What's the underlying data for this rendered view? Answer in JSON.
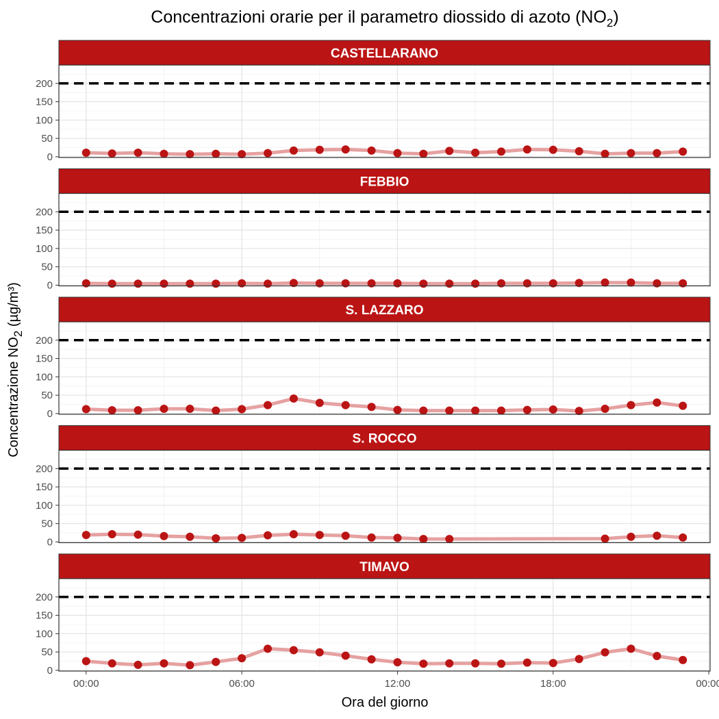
{
  "chart_data": {
    "type": "line",
    "title": "Concentrazioni orarie per il parametro diossido di azoto",
    "title_symbol": "NO",
    "title_subscript": "2",
    "xlabel": "Ora del giorno",
    "ylabel_main": "Concentrazione NO",
    "ylabel_subscript": "2",
    "ylabel_unit": " (µg/m³)",
    "x_ticks": [
      "00:00",
      "06:00",
      "12:00",
      "18:00",
      "00:00"
    ],
    "y_ticks": [
      "0",
      "50",
      "100",
      "150",
      "200"
    ],
    "threshold": 200,
    "ylim": [
      -2,
      250
    ],
    "xlim_hours": [
      -1.05,
      24.05
    ],
    "colors": {
      "point": "#bb1414",
      "line": "#e6a1a1",
      "strip": "#bb1414",
      "threshold": "#000000"
    },
    "panels": [
      {
        "name": "CASTELLARANO",
        "values": [
          11,
          9,
          11,
          8,
          7,
          8,
          7,
          10,
          17,
          19,
          20,
          17,
          10,
          8,
          16,
          11,
          14,
          20,
          19,
          15,
          8,
          10,
          10,
          14
        ]
      },
      {
        "name": "FEBBIO",
        "values": [
          5,
          4,
          4,
          4,
          4,
          4,
          5,
          4,
          6,
          5,
          5,
          5,
          5,
          4,
          4,
          4,
          5,
          5,
          5,
          6,
          7,
          7,
          5,
          5
        ]
      },
      {
        "name": "S. LAZZARO",
        "values": [
          12,
          9,
          9,
          13,
          13,
          8,
          12,
          23,
          41,
          29,
          23,
          18,
          10,
          8,
          8,
          8,
          8,
          10,
          11,
          7,
          13,
          23,
          30,
          21
        ]
      },
      {
        "name": "S. ROCCO",
        "values": [
          19,
          21,
          20,
          16,
          14,
          10,
          11,
          18,
          21,
          19,
          17,
          12,
          11,
          8,
          8,
          null,
          null,
          null,
          null,
          null,
          9,
          14,
          17,
          12
        ]
      },
      {
        "name": "TIMAVO",
        "values": [
          25,
          19,
          15,
          19,
          14,
          23,
          33,
          59,
          55,
          49,
          40,
          30,
          22,
          18,
          19,
          19,
          18,
          21,
          20,
          31,
          49,
          59,
          39,
          28
        ]
      }
    ]
  }
}
